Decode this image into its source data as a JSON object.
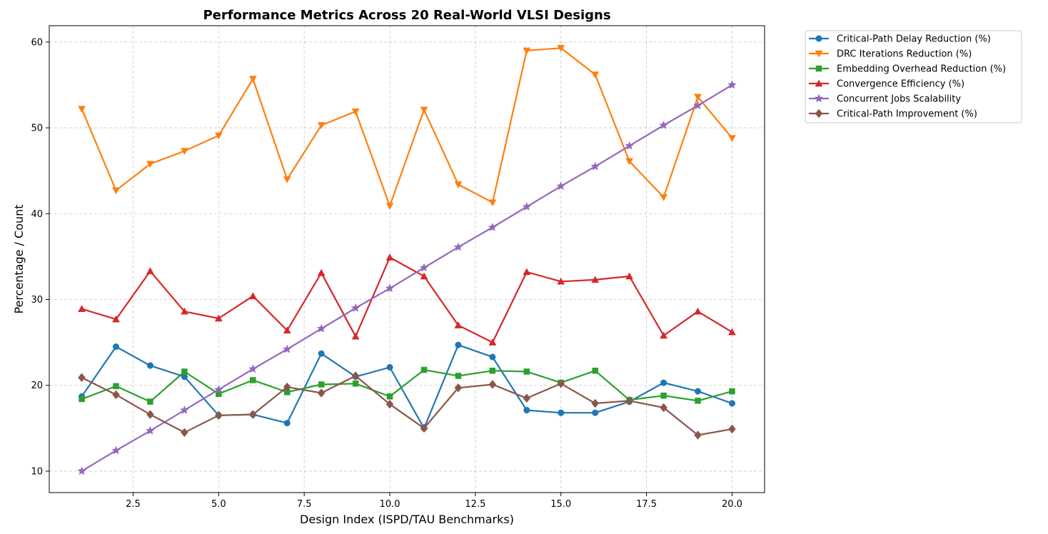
{
  "chart_data": {
    "type": "line",
    "title": "Performance Metrics Across 20 Real-World VLSI Designs",
    "xlabel": "Design Index (ISPD/TAU Benchmarks)",
    "ylabel": "Percentage / Count",
    "xlim": [
      0.05,
      20.95
    ],
    "ylim": [
      7.5,
      61.9
    ],
    "xticks": [
      2.5,
      5.0,
      7.5,
      10.0,
      12.5,
      15.0,
      17.5,
      20.0
    ],
    "xtick_labels": [
      "2.5",
      "5.0",
      "7.5",
      "10.0",
      "12.5",
      "15.0",
      "17.5",
      "20.0"
    ],
    "yticks": [
      10,
      20,
      30,
      40,
      50,
      60
    ],
    "ytick_labels": [
      "10",
      "20",
      "30",
      "40",
      "50",
      "60"
    ],
    "grid": true,
    "legend_position": "outside-top-right",
    "x": [
      1,
      2,
      3,
      4,
      5,
      6,
      7,
      8,
      9,
      10,
      11,
      12,
      13,
      14,
      15,
      16,
      17,
      18,
      19,
      20
    ],
    "series": [
      {
        "name": "Critical-Path Delay Reduction (%)",
        "color": "#1f77b4",
        "marker": "circle",
        "values": [
          18.7,
          24.5,
          22.3,
          21.0,
          16.5,
          16.6,
          15.6,
          23.7,
          21.0,
          22.1,
          15.0,
          24.7,
          23.3,
          17.1,
          16.8,
          16.8,
          18.1,
          20.3,
          19.3,
          17.9
        ]
      },
      {
        "name": "DRC Iterations Reduction (%)",
        "color": "#ff7f0e",
        "marker": "triangle-down",
        "values": [
          52.2,
          42.7,
          45.8,
          47.3,
          49.1,
          55.7,
          44.0,
          50.3,
          51.9,
          40.9,
          52.1,
          43.4,
          41.3,
          59.0,
          59.3,
          56.2,
          46.1,
          41.9,
          53.6,
          48.8
        ]
      },
      {
        "name": "Embedding Overhead Reduction (%)",
        "color": "#2ca02c",
        "marker": "square",
        "values": [
          18.4,
          19.9,
          18.1,
          21.6,
          19.0,
          20.6,
          19.2,
          20.1,
          20.2,
          18.7,
          21.8,
          21.1,
          21.7,
          21.6,
          20.3,
          21.7,
          18.3,
          18.8,
          18.2,
          19.3
        ]
      },
      {
        "name": "Convergence Efficiency (%)",
        "color": "#d62728",
        "marker": "triangle-up",
        "values": [
          28.9,
          27.7,
          33.3,
          28.6,
          27.8,
          30.4,
          26.4,
          33.1,
          25.7,
          34.9,
          32.7,
          27.0,
          25.0,
          33.2,
          32.1,
          32.3,
          32.7,
          25.8,
          28.6,
          26.2
        ]
      },
      {
        "name": "Concurrent Jobs Scalability",
        "color": "#9467bd",
        "marker": "star",
        "values": [
          10.0,
          12.4,
          14.7,
          17.1,
          19.5,
          21.9,
          24.2,
          26.6,
          29.0,
          31.3,
          33.7,
          36.1,
          38.4,
          40.8,
          43.2,
          45.5,
          47.9,
          50.3,
          52.6,
          55.0
        ]
      },
      {
        "name": "Critical-Path Improvement (%)",
        "color": "#8c564b",
        "marker": "diamond",
        "values": [
          20.9,
          18.9,
          16.6,
          14.5,
          16.5,
          16.6,
          19.8,
          19.1,
          21.1,
          17.8,
          15.0,
          19.7,
          20.1,
          18.5,
          20.2,
          17.9,
          18.2,
          17.4,
          14.2,
          14.9
        ]
      }
    ]
  }
}
